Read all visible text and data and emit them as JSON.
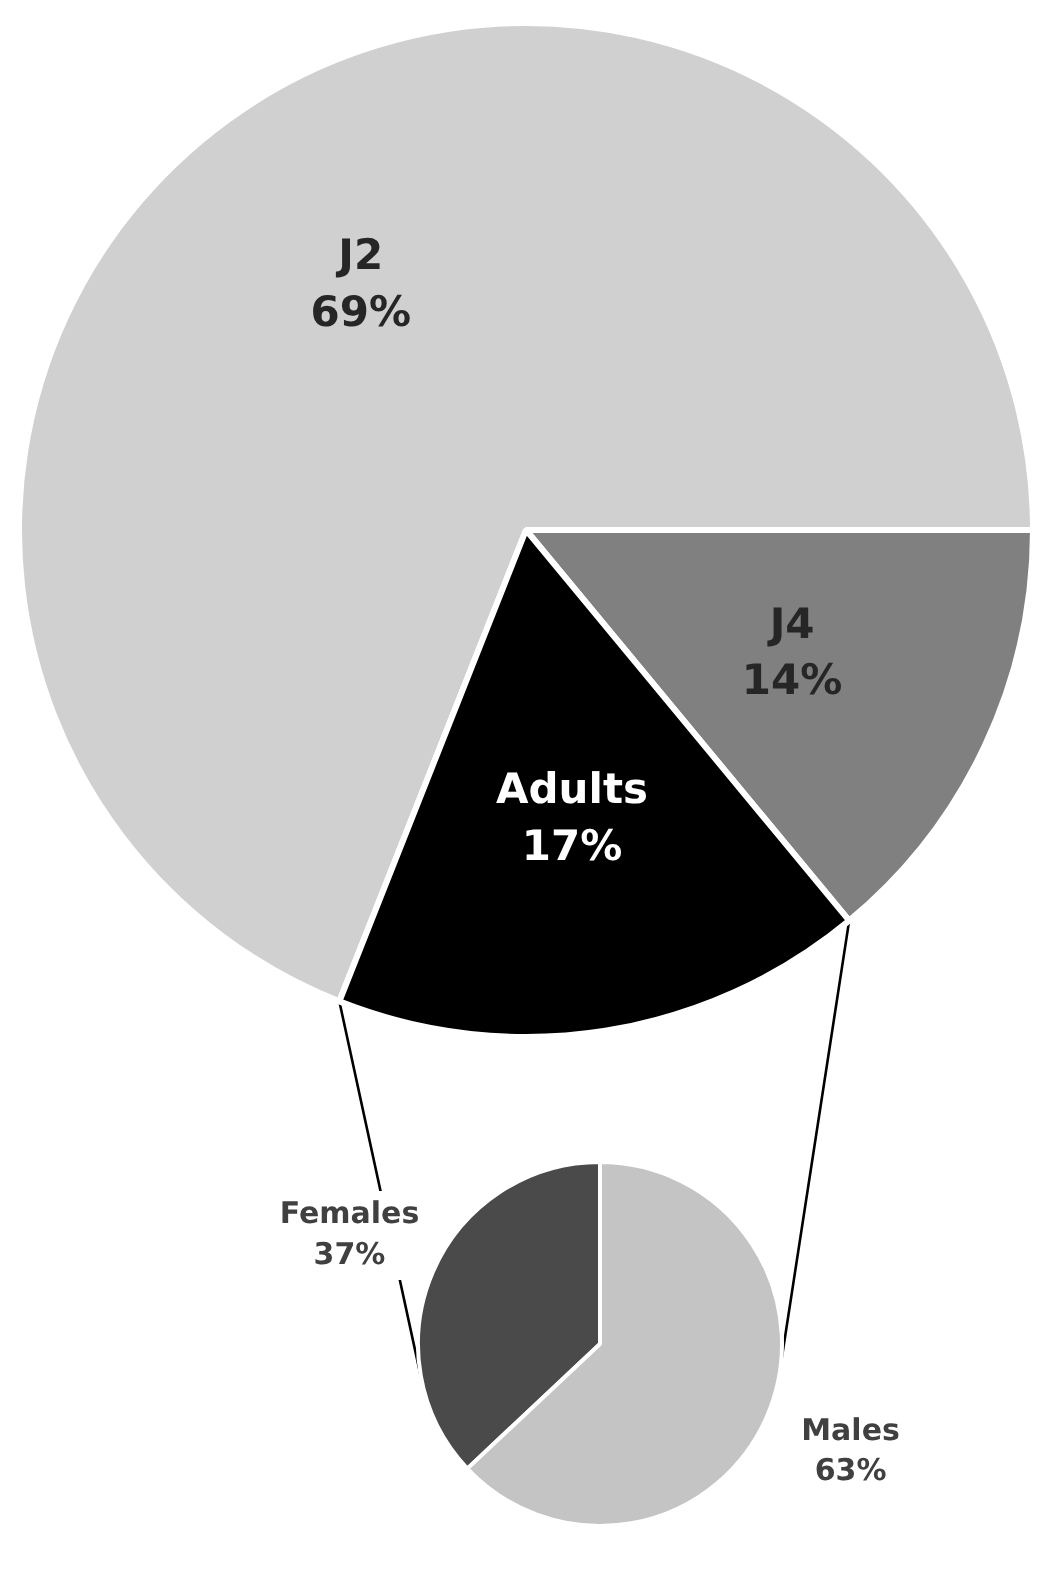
{
  "chart_data": [
    {
      "type": "pie",
      "categories": [
        "J2",
        "J4",
        "Adults"
      ],
      "values": [
        69,
        14,
        17
      ],
      "value_labels": [
        "69%",
        "14%",
        "17%"
      ],
      "colors": [
        "#d0d0d0",
        "#808080",
        "#000000"
      ]
    },
    {
      "type": "pie",
      "categories": [
        "Females",
        "Males"
      ],
      "values": [
        37,
        63
      ],
      "value_labels": [
        "37%",
        "63%"
      ],
      "colors": [
        "#4a4a4a",
        "#c4c4c4"
      ]
    }
  ]
}
